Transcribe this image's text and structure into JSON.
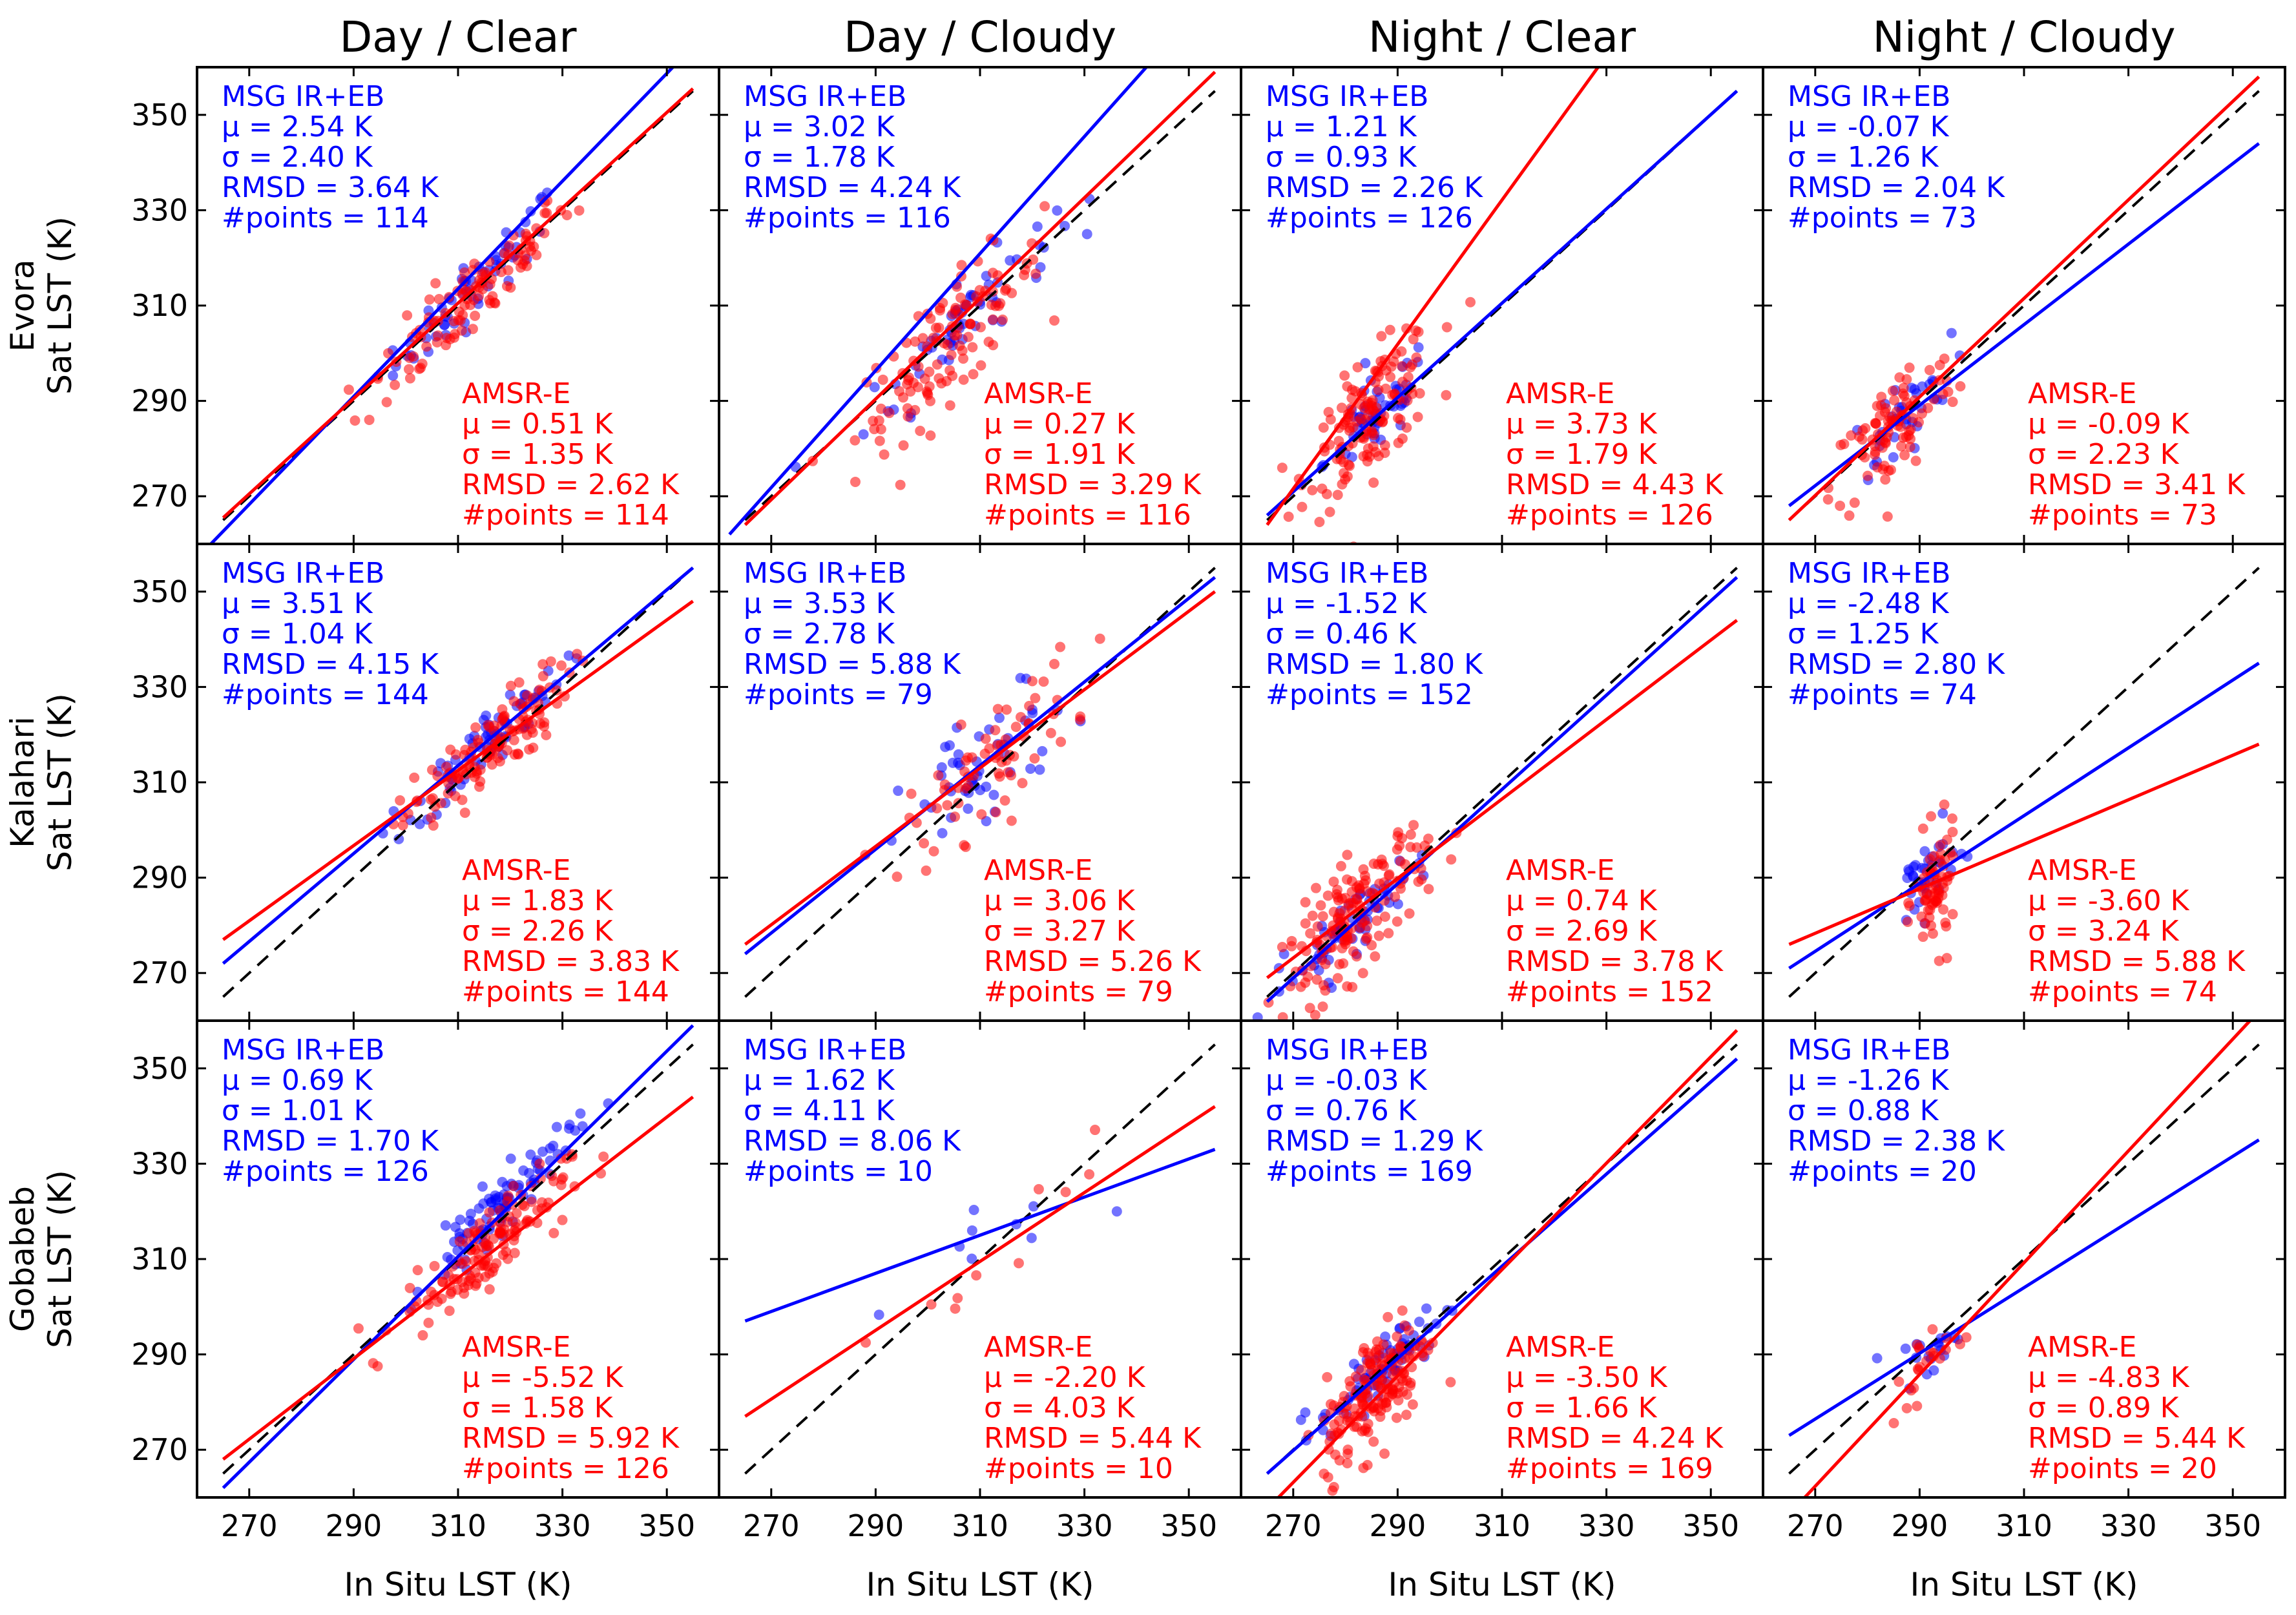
{
  "chart_data": {
    "type": "scatter",
    "layout": "3x4 grid of scatter panels",
    "column_titles": [
      "Day / Clear",
      "Day / Cloudy",
      "Night / Clear",
      "Night / Cloudy"
    ],
    "row_labels": [
      [
        "Evora",
        "Sat LST (K)"
      ],
      [
        "Kalahari",
        "Sat LST (K)"
      ],
      [
        "Gobabeb",
        "Sat LST (K)"
      ]
    ],
    "xlabel": "In Situ LST (K)",
    "xlim": [
      260,
      360
    ],
    "ylim": [
      260,
      360
    ],
    "xticks": [
      270,
      290,
      310,
      330,
      350
    ],
    "yticks": [
      270,
      290,
      310,
      330,
      350
    ],
    "reference_line": "1:1 (dashed black)",
    "colors": {
      "msg": "#0000ff",
      "amsr": "#ff0000",
      "reference": "#000000"
    },
    "series_names": [
      "MSG IR+EB",
      "AMSR-E"
    ],
    "stat_labels": {
      "mu": "μ =",
      "sigma": "σ =",
      "rmsd": "RMSD =",
      "npoints": "#points ="
    },
    "panels": [
      [
        {
          "column": "Day / Clear",
          "site": "Evora",
          "msg": {
            "mu": "2.54 K",
            "sigma": "2.40 K",
            "rmsd": "3.64 K",
            "n": "114",
            "fit": [
              [
                260,
                257
              ],
              [
                360,
                370
              ]
            ],
            "cloud": {
              "cx": 314,
              "cy": 315,
              "sx": 8,
              "ang": 1.1,
              "spread": 3,
              "n": 60
            }
          },
          "amsr": {
            "mu": "0.51 K",
            "sigma": "1.35 K",
            "rmsd": "2.62 K",
            "n": "114",
            "fit": [
              [
                265,
                265.5
              ],
              [
                355,
                355.5
              ]
            ],
            "cloud": {
              "cx": 312,
              "cy": 311,
              "sx": 10,
              "ang": 1.0,
              "spread": 4,
              "n": 110
            }
          }
        },
        {
          "column": "Day / Cloudy",
          "site": "Evora",
          "msg": {
            "mu": "3.02 K",
            "sigma": "1.78 K",
            "rmsd": "4.24 K",
            "n": "116",
            "fit": [
              [
                262,
                262
              ],
              [
                350,
                370
              ]
            ],
            "cloud": {
              "cx": 306,
              "cy": 306,
              "sx": 9,
              "ang": 1.1,
              "spread": 4,
              "n": 60
            }
          },
          "amsr": {
            "mu": "0.27 K",
            "sigma": "1.91 K",
            "rmsd": "3.29 K",
            "n": "116",
            "fit": [
              [
                265,
                264
              ],
              [
                355,
                359
              ]
            ],
            "cloud": {
              "cx": 304,
              "cy": 302,
              "sx": 9,
              "ang": 1.0,
              "spread": 6,
              "n": 120
            }
          }
        },
        {
          "column": "Night / Clear",
          "site": "Evora",
          "msg": {
            "mu": "1.21 K",
            "sigma": "0.93 K",
            "rmsd": "2.26 K",
            "n": "126",
            "fit": [
              [
                265,
                266
              ],
              [
                355,
                355
              ]
            ],
            "cloud": {
              "cx": 286,
              "cy": 287,
              "sx": 5,
              "ang": 1.0,
              "spread": 4,
              "n": 50
            }
          },
          "amsr": {
            "mu": "3.73 K",
            "sigma": "1.79 K",
            "rmsd": "4.43 K",
            "n": "126",
            "fit": [
              [
                265,
                264
              ],
              [
                335,
                370
              ]
            ],
            "cloud": {
              "cx": 285,
              "cy": 287,
              "sx": 6,
              "ang": 1.0,
              "spread": 6,
              "n": 140
            }
          }
        },
        {
          "column": "Night / Cloudy",
          "site": "Evora",
          "msg": {
            "mu": "-0.07 K",
            "sigma": "1.26 K",
            "rmsd": "2.04 K",
            "n": "73",
            "fit": [
              [
                265,
                268
              ],
              [
                355,
                344
              ]
            ],
            "cloud": {
              "cx": 286,
              "cy": 286,
              "sx": 5,
              "ang": 1.0,
              "spread": 4,
              "n": 35
            }
          },
          "amsr": {
            "mu": "-0.09 K",
            "sigma": "2.23 K",
            "rmsd": "3.41 K",
            "n": "73",
            "fit": [
              [
                265,
                265
              ],
              [
                355,
                358
              ]
            ],
            "cloud": {
              "cx": 285,
              "cy": 284,
              "sx": 6,
              "ang": 1.0,
              "spread": 6,
              "n": 90
            }
          }
        }
      ],
      [
        {
          "column": "Day / Clear",
          "site": "Kalahari",
          "msg": {
            "mu": "3.51 K",
            "sigma": "1.04 K",
            "rmsd": "4.15 K",
            "n": "144",
            "fit": [
              [
                265,
                272
              ],
              [
                355,
                355
              ]
            ],
            "cloud": {
              "cx": 316,
              "cy": 319,
              "sx": 7,
              "ang": 1.0,
              "spread": 3,
              "n": 70
            }
          },
          "amsr": {
            "mu": "1.83 K",
            "sigma": "2.26 K",
            "rmsd": "3.83 K",
            "n": "144",
            "fit": [
              [
                265,
                277
              ],
              [
                355,
                348
              ]
            ],
            "cloud": {
              "cx": 315,
              "cy": 316,
              "sx": 8,
              "ang": 0.95,
              "spread": 4,
              "n": 130
            }
          }
        },
        {
          "column": "Day / Cloudy",
          "site": "Kalahari",
          "msg": {
            "mu": "3.53 K",
            "sigma": "2.78 K",
            "rmsd": "5.88 K",
            "n": "79",
            "fit": [
              [
                265,
                274
              ],
              [
                355,
                353
              ]
            ],
            "cloud": {
              "cx": 311,
              "cy": 313,
              "sx": 8,
              "ang": 0.9,
              "spread": 7,
              "n": 50
            }
          },
          "amsr": {
            "mu": "3.06 K",
            "sigma": "3.27 K",
            "rmsd": "5.26 K",
            "n": "79",
            "fit": [
              [
                265,
                276
              ],
              [
                355,
                350
              ]
            ],
            "cloud": {
              "cx": 312,
              "cy": 314,
              "sx": 8,
              "ang": 0.9,
              "spread": 6,
              "n": 70
            }
          }
        },
        {
          "column": "Night / Clear",
          "site": "Kalahari",
          "msg": {
            "mu": "-1.52 K",
            "sigma": "0.46 K",
            "rmsd": "1.80 K",
            "n": "152",
            "fit": [
              [
                265,
                264
              ],
              [
                355,
                353
              ]
            ],
            "cloud": {
              "cx": 281,
              "cy": 280,
              "sx": 8,
              "ang": 1.0,
              "spread": 3,
              "n": 60
            }
          },
          "amsr": {
            "mu": "0.74 K",
            "sigma": "2.69 K",
            "rmsd": "3.78 K",
            "n": "152",
            "fit": [
              [
                265,
                269
              ],
              [
                355,
                344
              ]
            ],
            "cloud": {
              "cx": 282,
              "cy": 282,
              "sx": 7,
              "ang": 1.0,
              "spread": 6,
              "n": 160
            }
          }
        },
        {
          "column": "Night / Cloudy",
          "site": "Kalahari",
          "msg": {
            "mu": "-2.48 K",
            "sigma": "1.25 K",
            "rmsd": "2.80 K",
            "n": "74",
            "fit": [
              [
                265,
                271
              ],
              [
                355,
                335
              ]
            ],
            "cloud": {
              "cx": 291,
              "cy": 290,
              "sx": 3,
              "ang": 0.9,
              "spread": 4,
              "n": 35
            }
          },
          "amsr": {
            "mu": "-3.60 K",
            "sigma": "3.24 K",
            "rmsd": "5.88 K",
            "n": "74",
            "fit": [
              [
                265,
                276
              ],
              [
                355,
                318
              ]
            ],
            "cloud": {
              "cx": 293,
              "cy": 287,
              "sx": 2,
              "ang": 0.5,
              "spread": 6,
              "n": 70
            }
          }
        }
      ],
      [
        {
          "column": "Day / Clear",
          "site": "Gobabeb",
          "msg": {
            "mu": "0.69 K",
            "sigma": "1.01 K",
            "rmsd": "1.70 K",
            "n": "126",
            "fit": [
              [
                265,
                262
              ],
              [
                355,
                359
              ]
            ],
            "cloud": {
              "cx": 318,
              "cy": 321,
              "sx": 7,
              "ang": 1.1,
              "spread": 3,
              "n": 90
            }
          },
          "amsr": {
            "mu": "-5.52 K",
            "sigma": "1.58 K",
            "rmsd": "5.92 K",
            "n": "126",
            "fit": [
              [
                265,
                268
              ],
              [
                355,
                344
              ]
            ],
            "cloud": {
              "cx": 315,
              "cy": 312,
              "sx": 8,
              "ang": 0.9,
              "spread": 4,
              "n": 140
            }
          }
        },
        {
          "column": "Day / Cloudy",
          "site": "Gobabeb",
          "msg": {
            "mu": "1.62 K",
            "sigma": "4.11 K",
            "rmsd": "8.06 K",
            "n": "10",
            "fit": [
              [
                265,
                297
              ],
              [
                355,
                333
              ]
            ],
            "cloud": {
              "cx": 310,
              "cy": 312,
              "sx": 10,
              "ang": 0.4,
              "spread": 6,
              "n": 9
            }
          },
          "amsr": {
            "mu": "-2.20 K",
            "sigma": "4.03 K",
            "rmsd": "5.44 K",
            "n": "10",
            "fit": [
              [
                265,
                277
              ],
              [
                355,
                342
              ]
            ],
            "cloud": {
              "cx": 312,
              "cy": 311,
              "sx": 10,
              "ang": 0.7,
              "spread": 6,
              "n": 10
            }
          }
        },
        {
          "column": "Night / Clear",
          "site": "Gobabeb",
          "msg": {
            "mu": "-0.03 K",
            "sigma": "0.76 K",
            "rmsd": "1.29 K",
            "n": "169",
            "fit": [
              [
                265,
                265
              ],
              [
                355,
                352
              ]
            ],
            "cloud": {
              "cx": 287,
              "cy": 287,
              "sx": 6,
              "ang": 1.0,
              "spread": 3,
              "n": 70
            }
          },
          "amsr": {
            "mu": "-3.50 K",
            "sigma": "1.66 K",
            "rmsd": "4.24 K",
            "n": "169",
            "fit": [
              [
                260,
                252
              ],
              [
                355,
                358
              ]
            ],
            "cloud": {
              "cx": 286,
              "cy": 283,
              "sx": 5,
              "ang": 1.0,
              "spread": 6,
              "n": 170
            }
          }
        },
        {
          "column": "Night / Cloudy",
          "site": "Gobabeb",
          "msg": {
            "mu": "-1.26 K",
            "sigma": "0.88 K",
            "rmsd": "2.38 K",
            "n": "20",
            "fit": [
              [
                265,
                273
              ],
              [
                355,
                335
              ]
            ],
            "cloud": {
              "cx": 292,
              "cy": 291,
              "sx": 3,
              "ang": 0.8,
              "spread": 3,
              "n": 18
            }
          },
          "amsr": {
            "mu": "-4.83 K",
            "sigma": "0.89 K",
            "rmsd": "5.44 K",
            "n": "20",
            "fit": [
              [
                268,
                260
              ],
              [
                355,
                362
              ]
            ],
            "cloud": {
              "cx": 292,
              "cy": 288,
              "sx": 4,
              "ang": 0.9,
              "spread": 4,
              "n": 22
            }
          }
        }
      ]
    ]
  }
}
